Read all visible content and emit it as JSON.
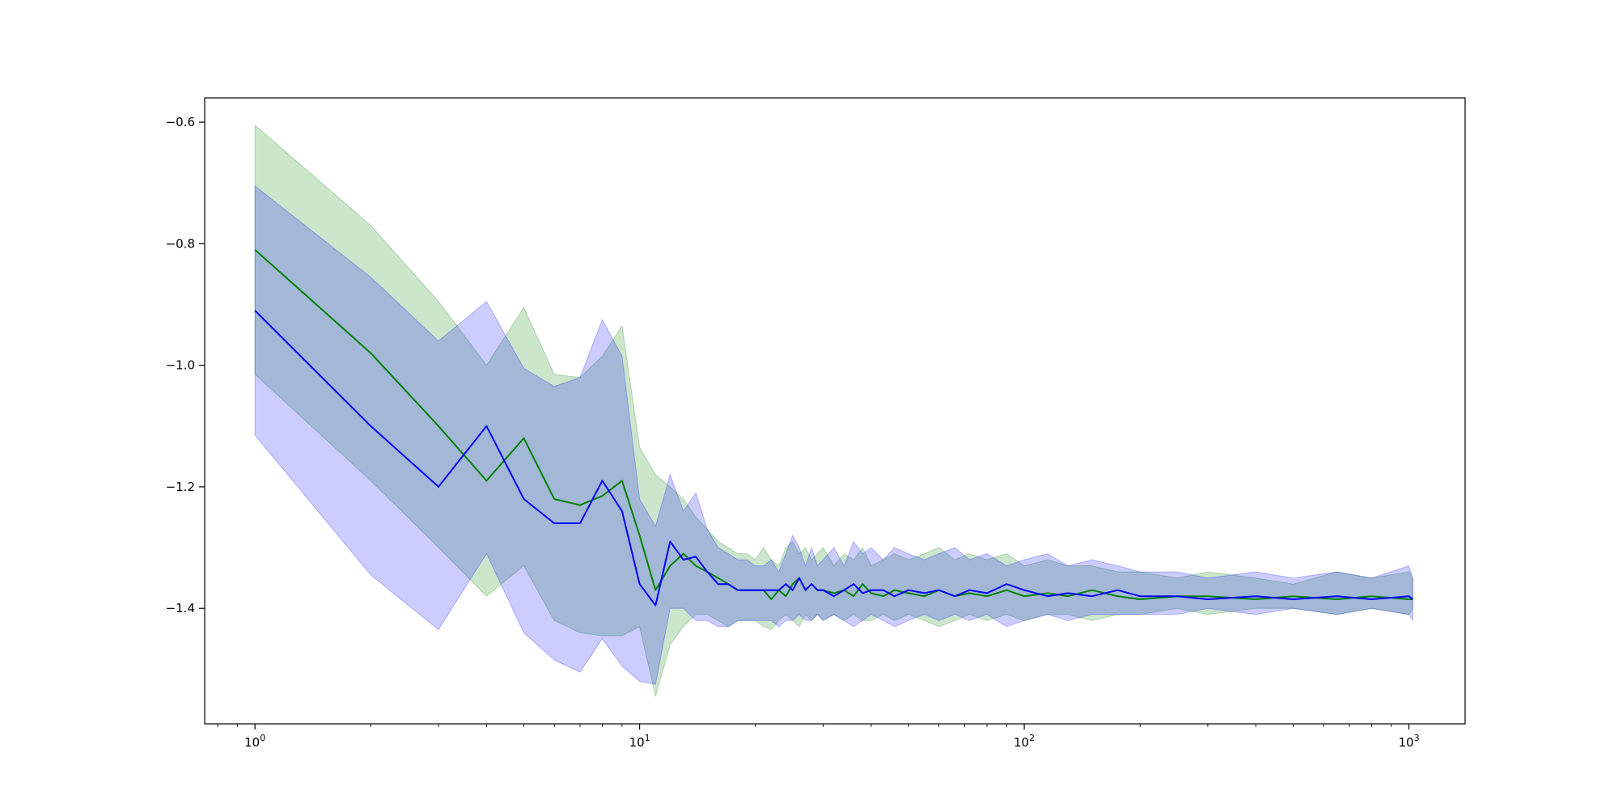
{
  "chart_data": {
    "type": "line",
    "title": "",
    "xlabel": "",
    "ylabel": "",
    "x_scale": "log",
    "xlim": [
      0.74,
      1400
    ],
    "ylim": [
      -1.59,
      -0.56
    ],
    "grid": false,
    "legend": "none",
    "x_ticks": [
      {
        "value": 1,
        "base": "10",
        "exp": "0"
      },
      {
        "value": 10,
        "base": "10",
        "exp": "1"
      },
      {
        "value": 100,
        "base": "10",
        "exp": "2"
      },
      {
        "value": 1000,
        "base": "10",
        "exp": "3"
      }
    ],
    "y_ticks": [
      {
        "value": -0.6,
        "label": "−0.6"
      },
      {
        "value": -0.8,
        "label": "−0.8"
      },
      {
        "value": -1.0,
        "label": "−1.0"
      },
      {
        "value": -1.2,
        "label": "−1.2"
      },
      {
        "value": -1.4,
        "label": "−1.4"
      }
    ],
    "series": [
      {
        "color": "#008000",
        "band_color": "#008000",
        "band_opacity": 0.2,
        "x": [
          1,
          2,
          3,
          4,
          5,
          6,
          7,
          8,
          9,
          10,
          11,
          12,
          13,
          14,
          15,
          16,
          17,
          18,
          19,
          20,
          21,
          22,
          23,
          24,
          25,
          26,
          27,
          28,
          29,
          30,
          32,
          34,
          36,
          38,
          40,
          43,
          46,
          50,
          55,
          60,
          66,
          72,
          80,
          90,
          100,
          115,
          130,
          150,
          175,
          200,
          250,
          300,
          400,
          500,
          650,
          800,
          1000,
          1024
        ],
        "y": [
          -0.81,
          -0.98,
          -1.1,
          -1.19,
          -1.12,
          -1.22,
          -1.23,
          -1.215,
          -1.19,
          -1.28,
          -1.37,
          -1.33,
          -1.31,
          -1.33,
          -1.34,
          -1.35,
          -1.36,
          -1.37,
          -1.37,
          -1.37,
          -1.37,
          -1.385,
          -1.37,
          -1.38,
          -1.36,
          -1.35,
          -1.37,
          -1.36,
          -1.37,
          -1.37,
          -1.375,
          -1.37,
          -1.38,
          -1.36,
          -1.375,
          -1.38,
          -1.37,
          -1.375,
          -1.38,
          -1.37,
          -1.38,
          -1.375,
          -1.38,
          -1.37,
          -1.38,
          -1.375,
          -1.38,
          -1.37,
          -1.38,
          -1.385,
          -1.38,
          -1.38,
          -1.385,
          -1.38,
          -1.385,
          -1.38,
          -1.385,
          -1.385
        ],
        "upper": [
          -0.605,
          -0.77,
          -0.895,
          -1.0,
          -0.905,
          -1.015,
          -1.02,
          -0.985,
          -0.935,
          -1.135,
          -1.18,
          -1.2,
          -1.22,
          -1.25,
          -1.27,
          -1.29,
          -1.3,
          -1.31,
          -1.31,
          -1.32,
          -1.3,
          -1.32,
          -1.33,
          -1.3,
          -1.29,
          -1.31,
          -1.3,
          -1.32,
          -1.31,
          -1.3,
          -1.33,
          -1.31,
          -1.32,
          -1.3,
          -1.33,
          -1.32,
          -1.31,
          -1.32,
          -1.31,
          -1.3,
          -1.32,
          -1.31,
          -1.32,
          -1.31,
          -1.33,
          -1.32,
          -1.33,
          -1.33,
          -1.34,
          -1.34,
          -1.35,
          -1.34,
          -1.35,
          -1.36,
          -1.34,
          -1.35,
          -1.34,
          -1.35
        ],
        "lower": [
          -1.015,
          -1.19,
          -1.3,
          -1.38,
          -1.33,
          -1.42,
          -1.44,
          -1.445,
          -1.445,
          -1.43,
          -1.545,
          -1.46,
          -1.43,
          -1.41,
          -1.41,
          -1.42,
          -1.43,
          -1.42,
          -1.42,
          -1.42,
          -1.43,
          -1.435,
          -1.42,
          -1.41,
          -1.42,
          -1.43,
          -1.41,
          -1.42,
          -1.41,
          -1.42,
          -1.41,
          -1.42,
          -1.41,
          -1.42,
          -1.42,
          -1.41,
          -1.42,
          -1.41,
          -1.42,
          -1.43,
          -1.42,
          -1.41,
          -1.42,
          -1.41,
          -1.42,
          -1.41,
          -1.41,
          -1.42,
          -1.41,
          -1.41,
          -1.4,
          -1.41,
          -1.4,
          -1.4,
          -1.41,
          -1.4,
          -1.41,
          -1.4
        ]
      },
      {
        "color": "#0000ff",
        "band_color": "#0000ff",
        "band_opacity": 0.2,
        "x": [
          1,
          2,
          3,
          4,
          5,
          6,
          7,
          8,
          9,
          10,
          11,
          12,
          13,
          14,
          15,
          16,
          17,
          18,
          19,
          20,
          21,
          22,
          23,
          24,
          25,
          26,
          27,
          28,
          29,
          30,
          32,
          34,
          36,
          38,
          40,
          43,
          46,
          50,
          55,
          60,
          66,
          72,
          80,
          90,
          100,
          115,
          130,
          150,
          175,
          200,
          250,
          300,
          400,
          500,
          650,
          800,
          1000,
          1024
        ],
        "y": [
          -0.91,
          -1.1,
          -1.2,
          -1.1,
          -1.22,
          -1.26,
          -1.26,
          -1.19,
          -1.24,
          -1.36,
          -1.395,
          -1.29,
          -1.32,
          -1.315,
          -1.34,
          -1.36,
          -1.36,
          -1.37,
          -1.37,
          -1.37,
          -1.37,
          -1.37,
          -1.37,
          -1.36,
          -1.37,
          -1.35,
          -1.37,
          -1.36,
          -1.37,
          -1.37,
          -1.38,
          -1.37,
          -1.36,
          -1.375,
          -1.37,
          -1.37,
          -1.38,
          -1.37,
          -1.375,
          -1.37,
          -1.38,
          -1.37,
          -1.375,
          -1.36,
          -1.37,
          -1.38,
          -1.375,
          -1.38,
          -1.37,
          -1.38,
          -1.38,
          -1.385,
          -1.38,
          -1.385,
          -1.38,
          -1.385,
          -1.38,
          -1.385
        ],
        "upper": [
          -0.705,
          -0.855,
          -0.96,
          -0.895,
          -1.005,
          -1.035,
          -1.02,
          -0.925,
          -0.985,
          -1.22,
          -1.265,
          -1.18,
          -1.24,
          -1.21,
          -1.27,
          -1.3,
          -1.31,
          -1.32,
          -1.32,
          -1.33,
          -1.33,
          -1.32,
          -1.34,
          -1.31,
          -1.28,
          -1.3,
          -1.33,
          -1.3,
          -1.33,
          -1.32,
          -1.3,
          -1.33,
          -1.29,
          -1.31,
          -1.3,
          -1.32,
          -1.3,
          -1.31,
          -1.32,
          -1.31,
          -1.3,
          -1.32,
          -1.31,
          -1.33,
          -1.32,
          -1.31,
          -1.33,
          -1.32,
          -1.33,
          -1.34,
          -1.34,
          -1.35,
          -1.34,
          -1.35,
          -1.34,
          -1.35,
          -1.33,
          -1.35
        ],
        "lower": [
          -1.115,
          -1.345,
          -1.435,
          -1.31,
          -1.44,
          -1.485,
          -1.505,
          -1.45,
          -1.495,
          -1.52,
          -1.525,
          -1.4,
          -1.4,
          -1.42,
          -1.42,
          -1.43,
          -1.43,
          -1.42,
          -1.42,
          -1.42,
          -1.42,
          -1.42,
          -1.43,
          -1.42,
          -1.42,
          -1.41,
          -1.42,
          -1.42,
          -1.41,
          -1.42,
          -1.41,
          -1.42,
          -1.43,
          -1.42,
          -1.41,
          -1.42,
          -1.43,
          -1.42,
          -1.41,
          -1.42,
          -1.41,
          -1.42,
          -1.41,
          -1.43,
          -1.42,
          -1.41,
          -1.42,
          -1.41,
          -1.41,
          -1.41,
          -1.41,
          -1.4,
          -1.41,
          -1.4,
          -1.41,
          -1.4,
          -1.41,
          -1.42
        ]
      }
    ]
  }
}
